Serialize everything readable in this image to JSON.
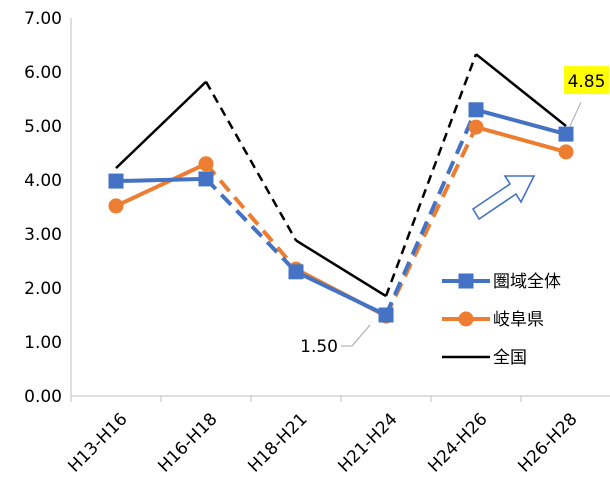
{
  "chart_data": {
    "type": "line",
    "categories": [
      "H13-H16",
      "H16-H18",
      "H18-H21",
      "H21-H24",
      "H24-H26",
      "H26-H28"
    ],
    "ylim": [
      0,
      7
    ],
    "yticks": [
      "0.00",
      "1.00",
      "2.00",
      "3.00",
      "4.00",
      "5.00",
      "6.00",
      "7.00"
    ],
    "grid": false,
    "legend_position": "right",
    "series": [
      {
        "name": "圏域全体",
        "color": "#4472C4",
        "marker": "square",
        "values": [
          3.98,
          4.02,
          2.3,
          1.5,
          5.3,
          4.85
        ],
        "dashed_segments": [
          1,
          3
        ]
      },
      {
        "name": "岐阜県",
        "color": "#ED7D31",
        "marker": "circle",
        "values": [
          3.52,
          4.3,
          2.35,
          1.48,
          4.98,
          4.52
        ],
        "dashed_segments": [
          1,
          3
        ]
      },
      {
        "name": "全国",
        "color": "#000000",
        "marker": "none",
        "values": [
          4.22,
          5.82,
          2.88,
          1.85,
          6.33,
          5.0
        ],
        "dashed_segments": [
          1,
          3
        ]
      }
    ],
    "annotations": [
      {
        "text": "1.50",
        "series": 0,
        "index": 3,
        "style": "plain"
      },
      {
        "text": "4.85",
        "series": 0,
        "index": 5,
        "style": "highlight",
        "background": "#FFFF00"
      }
    ],
    "arrow": {
      "shape": "block-arrow-outline",
      "color": "#4472C4",
      "direction": "up-right"
    }
  }
}
